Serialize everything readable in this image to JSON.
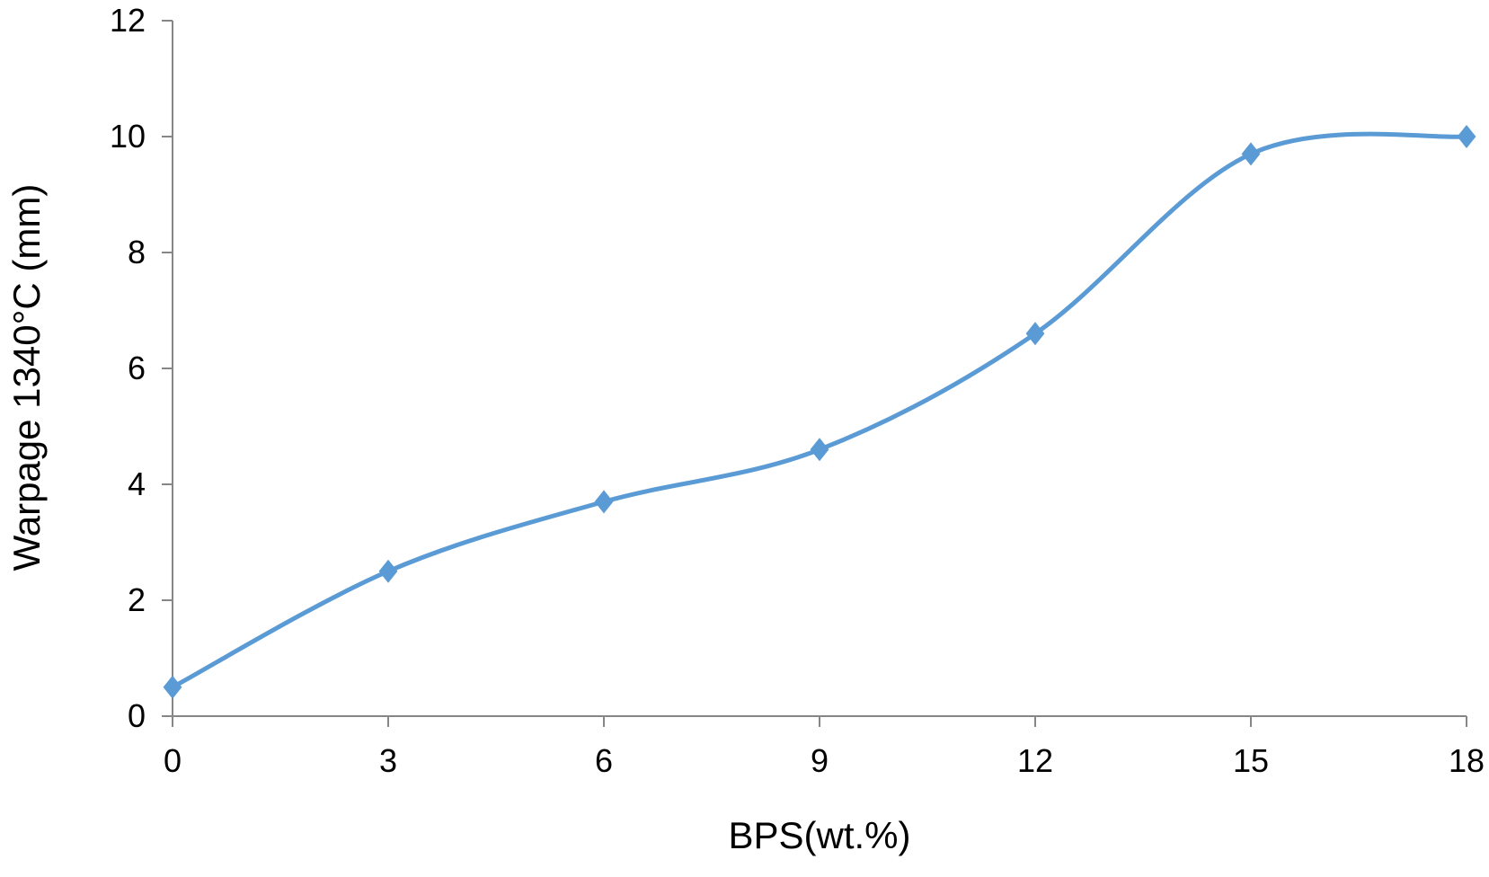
{
  "chart_data": {
    "type": "line",
    "xlabel": "BPS(wt.%)",
    "ylabel": "Warpage 1340°C (mm)",
    "xlim": [
      0,
      18
    ],
    "ylim": [
      0,
      12
    ],
    "x_ticks": [
      0,
      3,
      6,
      9,
      12,
      15,
      18
    ],
    "y_ticks": [
      0,
      2,
      4,
      6,
      8,
      10,
      12
    ],
    "grid": false,
    "smooth": true,
    "marker": "diamond",
    "series": [
      {
        "color": "#5b9bd5",
        "x": [
          0,
          3,
          6,
          9,
          12,
          15,
          18
        ],
        "y": [
          0.5,
          2.5,
          3.7,
          4.6,
          6.6,
          9.7,
          10.0
        ]
      }
    ]
  }
}
